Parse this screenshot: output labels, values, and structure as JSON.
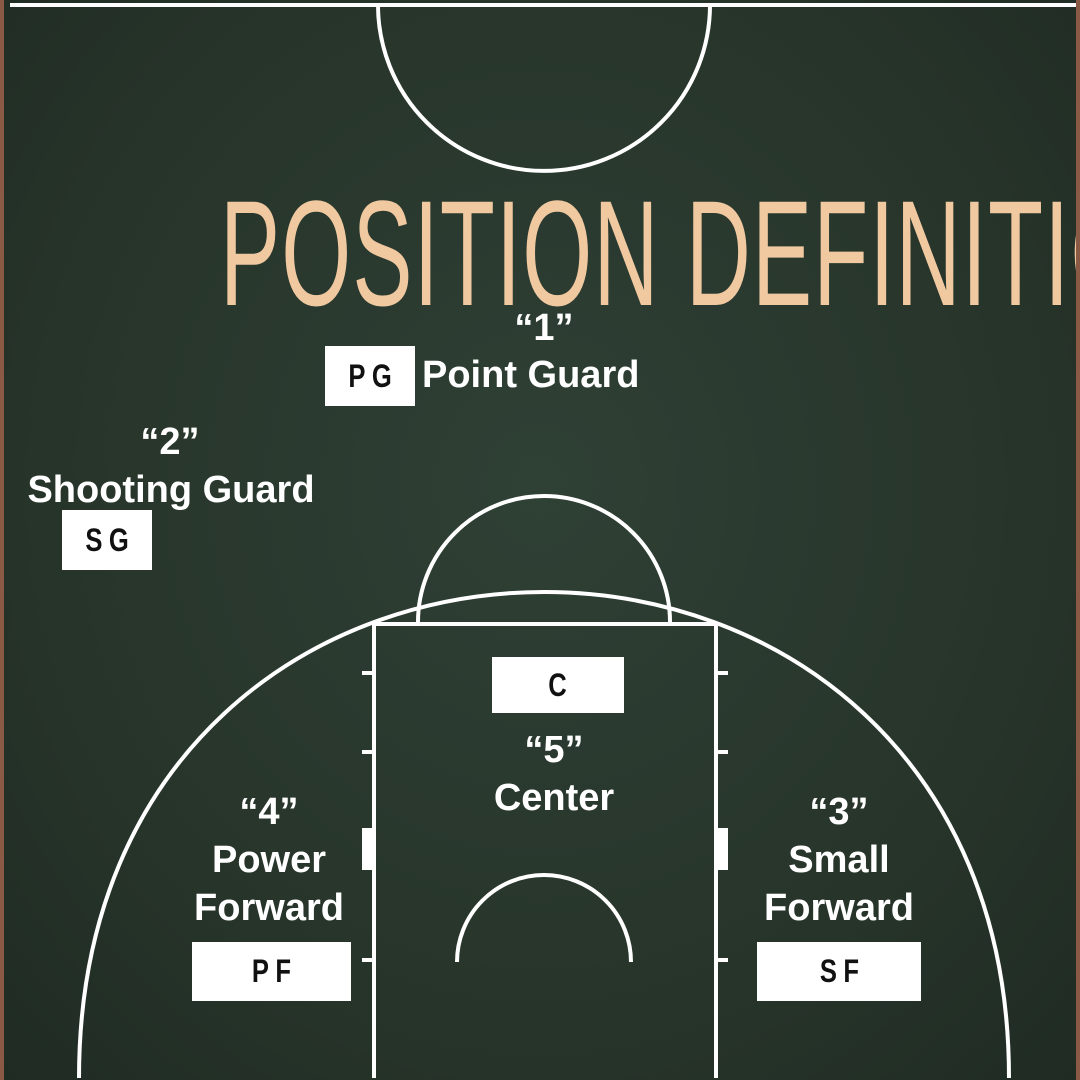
{
  "title": "POSITION DEFINITION",
  "positions": {
    "pg": {
      "number": "“1”",
      "name": "Point Guard",
      "abbr": "PG"
    },
    "sg": {
      "number": "“2”",
      "name": "Shooting Guard",
      "abbr": "SG"
    },
    "sf": {
      "number": "“3”",
      "name_line1": "Small",
      "name_line2": "Forward",
      "abbr": "SF"
    },
    "pf": {
      "number": "“4”",
      "name_line1": "Power",
      "name_line2": "Forward",
      "abbr": "PF"
    },
    "c": {
      "number": "“5”",
      "name": "Center",
      "abbr": "C"
    }
  },
  "colors": {
    "background": "#263329",
    "court_lines": "#ffffff",
    "title": "#f0c9a1",
    "border": "#8a5a44"
  }
}
